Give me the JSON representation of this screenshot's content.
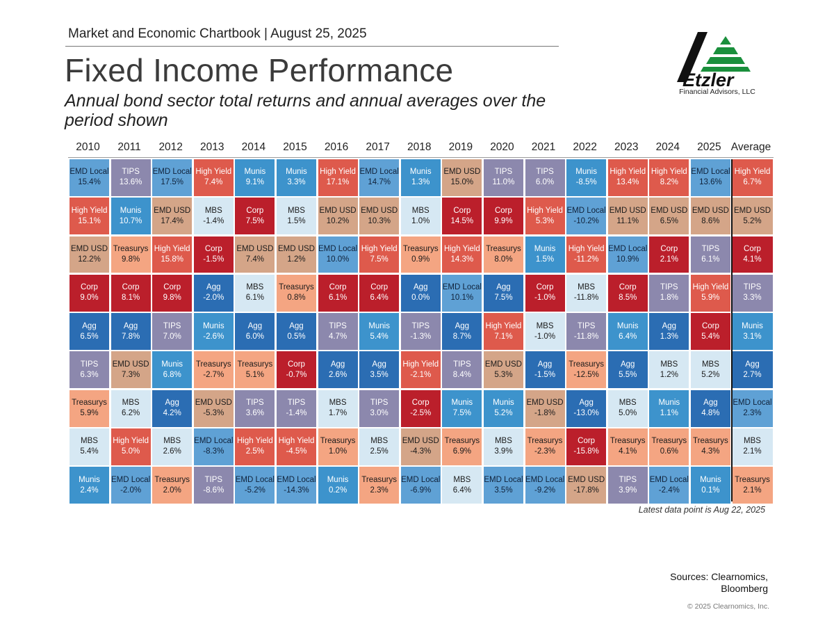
{
  "header": {
    "chartbook": "Market and Economic Chartbook | August 25, 2025",
    "title": "Fixed Income Performance",
    "subtitle": "Annual bond sector total returns and annual averages over the period shown"
  },
  "logo": {
    "name": "Etzler",
    "tagline": "Financial Advisors, LLC"
  },
  "colors": {
    "EMD Local": "#5fa1d5",
    "TIPS": "#8c88ad",
    "High Yield": "#de5a4c",
    "Munis": "#3d93cc",
    "EMD USD": "#d4a588",
    "MBS": "#d6e8f3",
    "Corp": "#bb1f2b",
    "Treasurys": "#f4a582",
    "Agg": "#2b6db3"
  },
  "chart_data": {
    "type": "table",
    "columns": [
      "2010",
      "2011",
      "2012",
      "2013",
      "2014",
      "2015",
      "2016",
      "2017",
      "2018",
      "2019",
      "2020",
      "2021",
      "2022",
      "2023",
      "2024",
      "2025",
      "Average"
    ],
    "rows": [
      [
        [
          "EMD Local",
          "15.4%"
        ],
        [
          "TIPS",
          "13.6%"
        ],
        [
          "EMD Local",
          "17.5%"
        ],
        [
          "High Yield",
          "7.4%"
        ],
        [
          "Munis",
          "9.1%"
        ],
        [
          "Munis",
          "3.3%"
        ],
        [
          "High Yield",
          "17.1%"
        ],
        [
          "EMD Local",
          "14.7%"
        ],
        [
          "Munis",
          "1.3%"
        ],
        [
          "EMD USD",
          "15.0%"
        ],
        [
          "TIPS",
          "11.0%"
        ],
        [
          "TIPS",
          "6.0%"
        ],
        [
          "Munis",
          "-8.5%"
        ],
        [
          "High Yield",
          "13.4%"
        ],
        [
          "High Yield",
          "8.2%"
        ],
        [
          "EMD Local",
          "13.6%"
        ],
        [
          "High Yield",
          "6.7%"
        ]
      ],
      [
        [
          "High Yield",
          "15.1%"
        ],
        [
          "Munis",
          "10.7%"
        ],
        [
          "EMD USD",
          "17.4%"
        ],
        [
          "MBS",
          "-1.4%"
        ],
        [
          "Corp",
          "7.5%"
        ],
        [
          "MBS",
          "1.5%"
        ],
        [
          "EMD USD",
          "10.2%"
        ],
        [
          "EMD USD",
          "10.3%"
        ],
        [
          "MBS",
          "1.0%"
        ],
        [
          "Corp",
          "14.5%"
        ],
        [
          "Corp",
          "9.9%"
        ],
        [
          "High Yield",
          "5.3%"
        ],
        [
          "EMD Local",
          "-10.2%"
        ],
        [
          "EMD USD",
          "11.1%"
        ],
        [
          "EMD USD",
          "6.5%"
        ],
        [
          "EMD USD",
          "8.6%"
        ],
        [
          "EMD USD",
          "5.2%"
        ]
      ],
      [
        [
          "EMD USD",
          "12.2%"
        ],
        [
          "Treasurys",
          "9.8%"
        ],
        [
          "High Yield",
          "15.8%"
        ],
        [
          "Corp",
          "-1.5%"
        ],
        [
          "EMD USD",
          "7.4%"
        ],
        [
          "EMD USD",
          "1.2%"
        ],
        [
          "EMD Local",
          "10.0%"
        ],
        [
          "High Yield",
          "7.5%"
        ],
        [
          "Treasurys",
          "0.9%"
        ],
        [
          "High Yield",
          "14.3%"
        ],
        [
          "Treasurys",
          "8.0%"
        ],
        [
          "Munis",
          "1.5%"
        ],
        [
          "High Yield",
          "-11.2%"
        ],
        [
          "EMD Local",
          "10.9%"
        ],
        [
          "Corp",
          "2.1%"
        ],
        [
          "TIPS",
          "6.1%"
        ],
        [
          "Corp",
          "4.1%"
        ]
      ],
      [
        [
          "Corp",
          "9.0%"
        ],
        [
          "Corp",
          "8.1%"
        ],
        [
          "Corp",
          "9.8%"
        ],
        [
          "Agg",
          "-2.0%"
        ],
        [
          "MBS",
          "6.1%"
        ],
        [
          "Treasurys",
          "0.8%"
        ],
        [
          "Corp",
          "6.1%"
        ],
        [
          "Corp",
          "6.4%"
        ],
        [
          "Agg",
          "0.0%"
        ],
        [
          "EMD Local",
          "10.1%"
        ],
        [
          "Agg",
          "7.5%"
        ],
        [
          "Corp",
          "-1.0%"
        ],
        [
          "MBS",
          "-11.8%"
        ],
        [
          "Corp",
          "8.5%"
        ],
        [
          "TIPS",
          "1.8%"
        ],
        [
          "High Yield",
          "5.9%"
        ],
        [
          "TIPS",
          "3.3%"
        ]
      ],
      [
        [
          "Agg",
          "6.5%"
        ],
        [
          "Agg",
          "7.8%"
        ],
        [
          "TIPS",
          "7.0%"
        ],
        [
          "Munis",
          "-2.6%"
        ],
        [
          "Agg",
          "6.0%"
        ],
        [
          "Agg",
          "0.5%"
        ],
        [
          "TIPS",
          "4.7%"
        ],
        [
          "Munis",
          "5.4%"
        ],
        [
          "TIPS",
          "-1.3%"
        ],
        [
          "Agg",
          "8.7%"
        ],
        [
          "High Yield",
          "7.1%"
        ],
        [
          "MBS",
          "-1.0%"
        ],
        [
          "TIPS",
          "-11.8%"
        ],
        [
          "Munis",
          "6.4%"
        ],
        [
          "Agg",
          "1.3%"
        ],
        [
          "Corp",
          "5.4%"
        ],
        [
          "Munis",
          "3.1%"
        ]
      ],
      [
        [
          "TIPS",
          "6.3%"
        ],
        [
          "EMD USD",
          "7.3%"
        ],
        [
          "Munis",
          "6.8%"
        ],
        [
          "Treasurys",
          "-2.7%"
        ],
        [
          "Treasurys",
          "5.1%"
        ],
        [
          "Corp",
          "-0.7%"
        ],
        [
          "Agg",
          "2.6%"
        ],
        [
          "Agg",
          "3.5%"
        ],
        [
          "High Yield",
          "-2.1%"
        ],
        [
          "TIPS",
          "8.4%"
        ],
        [
          "EMD USD",
          "5.3%"
        ],
        [
          "Agg",
          "-1.5%"
        ],
        [
          "Treasurys",
          "-12.5%"
        ],
        [
          "Agg",
          "5.5%"
        ],
        [
          "MBS",
          "1.2%"
        ],
        [
          "MBS",
          "5.2%"
        ],
        [
          "Agg",
          "2.7%"
        ]
      ],
      [
        [
          "Treasurys",
          "5.9%"
        ],
        [
          "MBS",
          "6.2%"
        ],
        [
          "Agg",
          "4.2%"
        ],
        [
          "EMD USD",
          "-5.3%"
        ],
        [
          "TIPS",
          "3.6%"
        ],
        [
          "TIPS",
          "-1.4%"
        ],
        [
          "MBS",
          "1.7%"
        ],
        [
          "TIPS",
          "3.0%"
        ],
        [
          "Corp",
          "-2.5%"
        ],
        [
          "Munis",
          "7.5%"
        ],
        [
          "Munis",
          "5.2%"
        ],
        [
          "EMD USD",
          "-1.8%"
        ],
        [
          "Agg",
          "-13.0%"
        ],
        [
          "MBS",
          "5.0%"
        ],
        [
          "Munis",
          "1.1%"
        ],
        [
          "Agg",
          "4.8%"
        ],
        [
          "EMD Local",
          "2.3%"
        ]
      ],
      [
        [
          "MBS",
          "5.4%"
        ],
        [
          "High Yield",
          "5.0%"
        ],
        [
          "MBS",
          "2.6%"
        ],
        [
          "EMD Local",
          "-8.3%"
        ],
        [
          "High Yield",
          "2.5%"
        ],
        [
          "High Yield",
          "-4.5%"
        ],
        [
          "Treasurys",
          "1.0%"
        ],
        [
          "MBS",
          "2.5%"
        ],
        [
          "EMD USD",
          "-4.3%"
        ],
        [
          "Treasurys",
          "6.9%"
        ],
        [
          "MBS",
          "3.9%"
        ],
        [
          "Treasurys",
          "-2.3%"
        ],
        [
          "Corp",
          "-15.8%"
        ],
        [
          "Treasurys",
          "4.1%"
        ],
        [
          "Treasurys",
          "0.6%"
        ],
        [
          "Treasurys",
          "4.3%"
        ],
        [
          "MBS",
          "2.1%"
        ]
      ],
      [
        [
          "Munis",
          "2.4%"
        ],
        [
          "EMD Local",
          "-2.0%"
        ],
        [
          "Treasurys",
          "2.0%"
        ],
        [
          "TIPS",
          "-8.6%"
        ],
        [
          "EMD Local",
          "-5.2%"
        ],
        [
          "EMD Local",
          "-14.3%"
        ],
        [
          "Munis",
          "0.2%"
        ],
        [
          "Treasurys",
          "2.3%"
        ],
        [
          "EMD Local",
          "-6.9%"
        ],
        [
          "MBS",
          "6.4%"
        ],
        [
          "EMD Local",
          "3.5%"
        ],
        [
          "EMD Local",
          "-9.2%"
        ],
        [
          "EMD USD",
          "-17.8%"
        ],
        [
          "TIPS",
          "3.9%"
        ],
        [
          "EMD Local",
          "-2.4%"
        ],
        [
          "Munis",
          "0.1%"
        ],
        [
          "Treasurys",
          "2.1%"
        ]
      ]
    ]
  },
  "footer": {
    "note": "Latest data point is Aug 22, 2025",
    "sources": "Sources: Clearnomics, Bloomberg",
    "copyright": "© 2025 Clearnomics, Inc."
  }
}
